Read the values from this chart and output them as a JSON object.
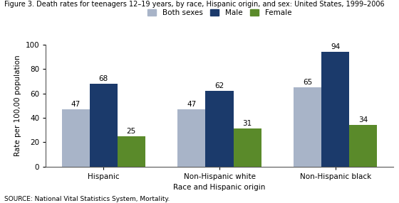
{
  "title": "Figure 3. Death rates for teenagers 12–19 years, by race, Hispanic origin, and sex: United States, 1999–2006",
  "categories": [
    "Hispanic",
    "Non-Hispanic white",
    "Non-Hispanic black"
  ],
  "series": {
    "Both sexes": [
      47,
      47,
      65
    ],
    "Male": [
      68,
      62,
      94
    ],
    "Female": [
      25,
      31,
      34
    ]
  },
  "colors": {
    "Both sexes": "#a8b4c8",
    "Male": "#1b3a6b",
    "Female": "#5a8a2a"
  },
  "ylabel": "Rate per 100,00 population",
  "xlabel": "Race and Hispanic origin",
  "ylim": [
    0,
    100
  ],
  "yticks": [
    0,
    20,
    40,
    60,
    80,
    100
  ],
  "source": "SOURCE: National Vital Statistics System, Mortality.",
  "bar_width": 0.24,
  "legend_labels": [
    "Both sexes",
    "Male",
    "Female"
  ],
  "title_fontsize": 7.0,
  "label_fontsize": 7.5,
  "tick_fontsize": 7.5,
  "annotation_fontsize": 7.5,
  "source_fontsize": 6.5
}
